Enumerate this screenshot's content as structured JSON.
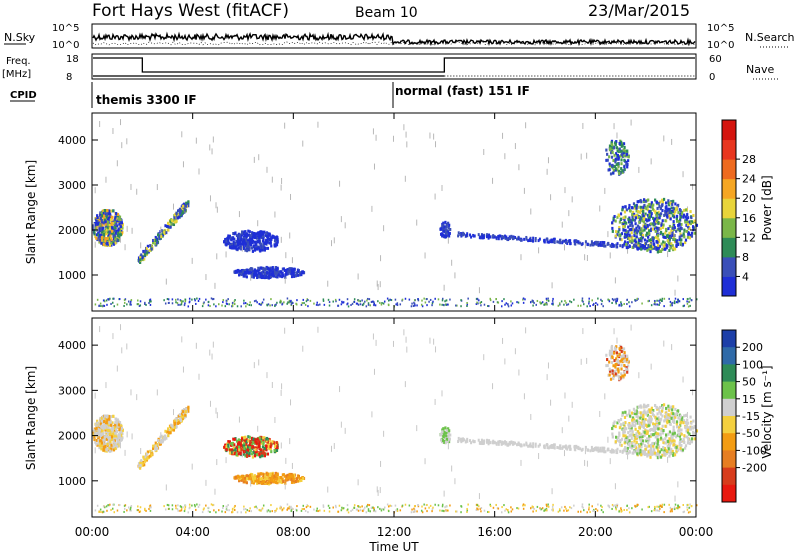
{
  "header": {
    "station": "Fort Hays West (fitACF)",
    "beam": "Beam 10",
    "date": "23/Mar/2015"
  },
  "strip_labels": {
    "nsky": "N.Sky",
    "nsky_ticks": [
      "10^5",
      "10^0"
    ],
    "nsearch": "N.Search",
    "freq_line1": "Freq.",
    "freq_line2": "[MHz]",
    "freq_ticks": [
      "18",
      "8"
    ],
    "nave_ticks": [
      "60",
      "0"
    ],
    "nave": "Nave",
    "cpid": "CPID"
  },
  "cpid_modes": [
    {
      "label": "themis 3300 IF",
      "start_hour": 0
    },
    {
      "label": "normal (fast) 151 IF",
      "start_hour": 12
    }
  ],
  "chart_data": [
    {
      "type": "heatmap",
      "name": "power",
      "ylabel": "Slant Range [km]",
      "yticks": [
        1000,
        2000,
        3000,
        4000
      ],
      "ylim": [
        200,
        4600
      ],
      "xlim": [
        0,
        24
      ],
      "colorbar": {
        "label": "Power [dB]",
        "ticks": [
          "4",
          "8",
          "12",
          "16",
          "20",
          "24",
          "28"
        ],
        "colors": [
          "#1f2fd6",
          "#3a4fb8",
          "#2e8b57",
          "#7ab648",
          "#e8d43a",
          "#f5a623",
          "#ee6a1f",
          "#e8361f",
          "#d4140e"
        ]
      }
    },
    {
      "type": "heatmap",
      "name": "velocity",
      "ylabel": "Slant Range [km]",
      "yticks": [
        1000,
        2000,
        3000,
        4000
      ],
      "ylim": [
        200,
        4600
      ],
      "xlim": [
        0,
        24
      ],
      "colorbar": {
        "label": "Velocity [m s⁻¹]",
        "ticks": [
          "200",
          "100",
          "50",
          "15",
          "-15",
          "-50",
          "-100",
          "-200"
        ],
        "colors": [
          "#1d3fa8",
          "#2f6aa8",
          "#2e8b57",
          "#6cc24a",
          "#cfcfcf",
          "#f4d03f",
          "#f39c12",
          "#e67e22",
          "#d73c1c",
          "#e8190f"
        ]
      }
    }
  ],
  "xaxis": {
    "ticks": [
      "00:00",
      "04:00",
      "08:00",
      "12:00",
      "16:00",
      "20:00",
      "00:00"
    ],
    "label": "Time UT"
  }
}
